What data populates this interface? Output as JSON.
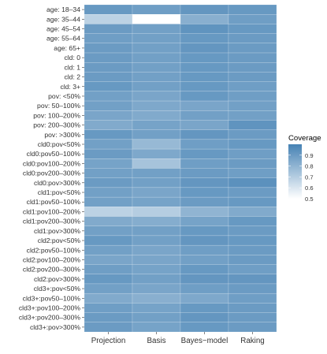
{
  "chart_data": {
    "type": "heatmap",
    "title": "",
    "xlabel": "",
    "ylabel": "",
    "x_categories": [
      "Projection",
      "Basis",
      "Bayes−model",
      "Raking"
    ],
    "y_categories": [
      "age: 18–34",
      "age: 35–44",
      "age: 45–54",
      "age: 55–64",
      "age: 65+",
      "cld: 0",
      "cld: 1",
      "cld: 2",
      "cld: 3+",
      "pov: <50%",
      "pov: 50–100%",
      "pov: 100–200%",
      "pov: 200–300%",
      "pov: >300%",
      "cld0:pov<50%",
      "cld0:pov50–100%",
      "cld0:pov100–200%",
      "cld0:pov200–300%",
      "cld0:pov>300%",
      "cld1:pov<50%",
      "cld1:pov50–100%",
      "cld1:pov100–200%",
      "cld1:pov200–300%",
      "cld1:pov>300%",
      "cld2:pov<50%",
      "cld2:pov50–100%",
      "cld2:pov100–200%",
      "cld2:pov200–300%",
      "cld2:pov>300%",
      "cld3+:pov<50%",
      "cld3+:pov50–100%",
      "cld3+:pov100–200%",
      "cld3+:pov200–300%",
      "cld3+:pov>300%"
    ],
    "values": [
      [
        0.91,
        0.89,
        0.92,
        0.91
      ],
      [
        0.68,
        0.5,
        0.82,
        0.89
      ],
      [
        0.9,
        0.88,
        0.93,
        0.91
      ],
      [
        0.89,
        0.88,
        0.91,
        0.9
      ],
      [
        0.9,
        0.88,
        0.92,
        0.9
      ],
      [
        0.9,
        0.88,
        0.91,
        0.9
      ],
      [
        0.9,
        0.88,
        0.91,
        0.9
      ],
      [
        0.9,
        0.88,
        0.91,
        0.9
      ],
      [
        0.91,
        0.88,
        0.91,
        0.89
      ],
      [
        0.88,
        0.86,
        0.91,
        0.89
      ],
      [
        0.88,
        0.85,
        0.86,
        0.88
      ],
      [
        0.86,
        0.84,
        0.88,
        0.88
      ],
      [
        0.84,
        0.87,
        0.86,
        0.93
      ],
      [
        0.91,
        0.88,
        0.92,
        0.9
      ],
      [
        0.88,
        0.78,
        0.89,
        0.91
      ],
      [
        0.9,
        0.85,
        0.91,
        0.89
      ],
      [
        0.87,
        0.74,
        0.89,
        0.9
      ],
      [
        0.88,
        0.88,
        0.9,
        0.89
      ],
      [
        0.9,
        0.88,
        0.92,
        0.94
      ],
      [
        0.88,
        0.86,
        0.91,
        0.9
      ],
      [
        0.88,
        0.87,
        0.9,
        0.91
      ],
      [
        0.68,
        0.7,
        0.8,
        0.84
      ],
      [
        0.84,
        0.83,
        0.87,
        0.91
      ],
      [
        0.88,
        0.88,
        0.91,
        0.9
      ],
      [
        0.91,
        0.88,
        0.92,
        0.91
      ],
      [
        0.88,
        0.86,
        0.89,
        0.9
      ],
      [
        0.86,
        0.86,
        0.88,
        0.9
      ],
      [
        0.89,
        0.87,
        0.91,
        0.89
      ],
      [
        0.91,
        0.88,
        0.92,
        0.92
      ],
      [
        0.88,
        0.86,
        0.89,
        0.9
      ],
      [
        0.84,
        0.82,
        0.85,
        0.89
      ],
      [
        0.89,
        0.87,
        0.91,
        0.9
      ],
      [
        0.9,
        0.88,
        0.92,
        0.9
      ],
      [
        0.9,
        0.87,
        0.91,
        0.9
      ]
    ],
    "color_range": [
      0.5,
      1.0
    ],
    "color_low": "#ffffff",
    "color_high": "#4682b4",
    "grid": false,
    "legend": {
      "title": "Coverage",
      "position": "right",
      "ticks": [
        0.9,
        0.8,
        0.7,
        0.6,
        0.5
      ],
      "tick_labels": [
        "0.9",
        "0.8",
        "0.7",
        "0.6",
        "0.5"
      ]
    }
  }
}
